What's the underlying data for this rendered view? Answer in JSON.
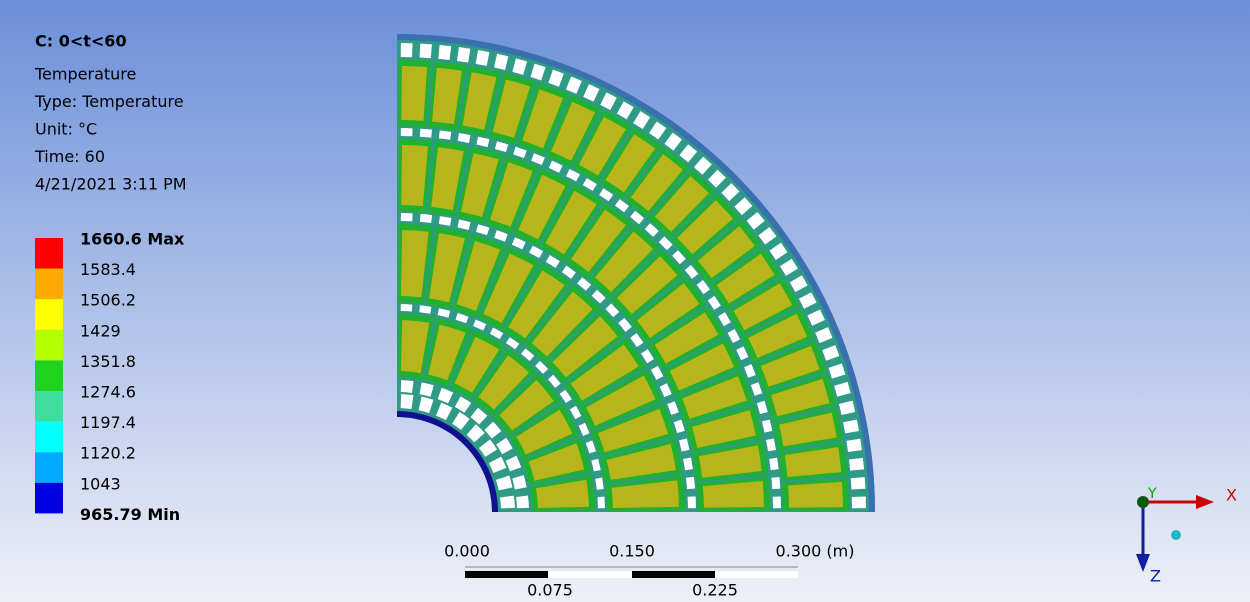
{
  "header": {
    "title": "C: 0<t<60",
    "lines": [
      "Temperature",
      "Type: Temperature",
      "Unit: °C",
      "Time: 60",
      "4/21/2021 3:11 PM"
    ]
  },
  "legend": {
    "labels": [
      "1660.6 Max",
      "1583.4",
      "1506.2",
      "1429",
      "1351.8",
      "1274.6",
      "1197.4",
      "1120.2",
      "1043",
      "965.79 Min"
    ],
    "colors": [
      "#ff0000",
      "#ffaa00",
      "#ffff00",
      "#b4ff00",
      "#1ed21e",
      "#3fdca0",
      "#00ffff",
      "#00aaff",
      "#0000e0"
    ]
  },
  "scale_bar": {
    "top_labels": [
      "0.000",
      "0.150",
      "0.300 (m)"
    ],
    "bottom_labels": [
      "0.075",
      "0.225"
    ]
  },
  "triad": {
    "x": "X",
    "y": "Y",
    "z": "Z"
  }
}
